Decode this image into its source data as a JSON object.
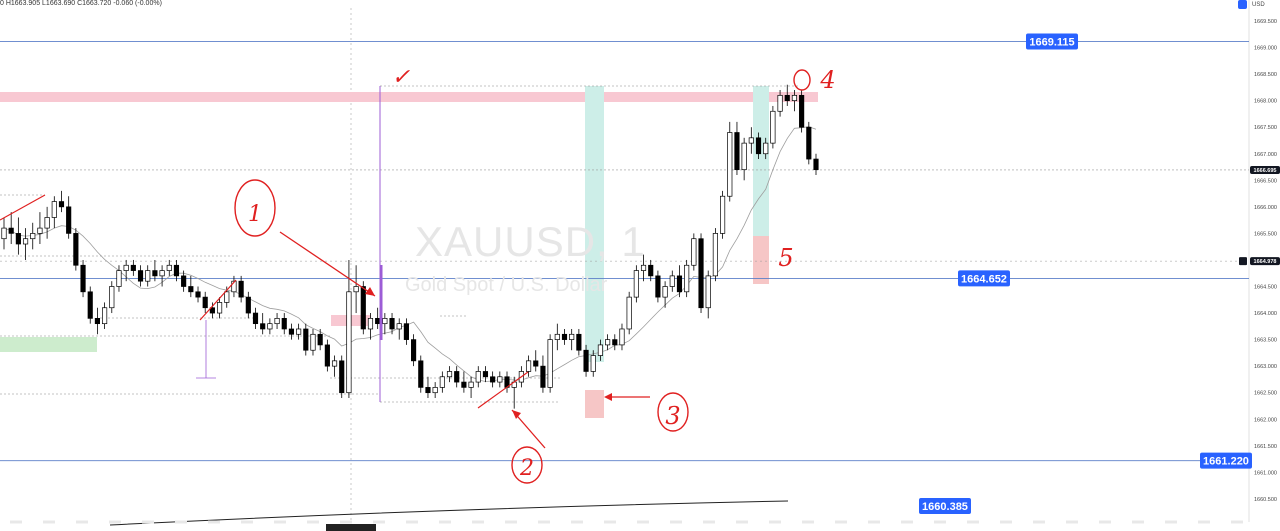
{
  "header": {
    "ohlc_text": "0  H1663.905  L1663.690  C1663.720  -0.060 (-0.00%)",
    "currency": "USD"
  },
  "watermark": {
    "symbol": "XAUUSD, 1",
    "description": "Gold Spot / U.S. Dollar"
  },
  "colors": {
    "up": "#ffffff",
    "down": "#000000",
    "wick": "#000000",
    "level_line": "#5b7fc9",
    "label_bg": "#2962ff",
    "resistance_zone": "#f8c8d2",
    "support_zone": "#cdeccd",
    "teal_zone": "#cdeee8",
    "annotation": "#e02020",
    "purple": "#9c5cd6"
  },
  "chart_data": {
    "type": "candlestick",
    "title": "",
    "ylim": [
      1660.3,
      1669.9
    ],
    "y_ticks": [
      "1669.500",
      "1669.000",
      "1668.500",
      "1668.000",
      "1667.500",
      "1667.000",
      "1666.500",
      "1666.000",
      "1665.500",
      "1665.000",
      "1664.500",
      "1664.000",
      "1663.500",
      "1663.000",
      "1662.500",
      "1662.000",
      "1661.500",
      "1661.000",
      "1660.500"
    ],
    "y_tick_values": [
      1669.5,
      1669.0,
      1668.5,
      1668.0,
      1667.5,
      1667.0,
      1666.5,
      1666.0,
      1665.5,
      1665.0,
      1664.5,
      1664.0,
      1663.5,
      1663.0,
      1662.5,
      1662.0,
      1661.5,
      1661.0,
      1660.5
    ],
    "current_price": "1666.695",
    "current_price_value": 1666.695,
    "crosshair_price": "1664.978",
    "crosshair_price_value": 1664.978,
    "levels": [
      {
        "label": "1669.115",
        "value": 1669.115
      },
      {
        "label": "1664.652",
        "value": 1664.652
      },
      {
        "label": "1661.220",
        "value": 1661.22
      },
      {
        "label": "1660.385",
        "value": 1660.385
      }
    ],
    "annotations": [
      "✓",
      "1",
      "2",
      "3",
      "4",
      "5"
    ],
    "candles": [
      [
        1665.4,
        1665.8,
        1665.2,
        1665.6
      ],
      [
        1665.6,
        1665.9,
        1665.3,
        1665.5
      ],
      [
        1665.5,
        1665.8,
        1665.1,
        1665.3
      ],
      [
        1665.3,
        1665.6,
        1665.0,
        1665.4
      ],
      [
        1665.4,
        1665.7,
        1665.2,
        1665.5
      ],
      [
        1665.5,
        1665.9,
        1665.3,
        1665.6
      ],
      [
        1665.6,
        1666.0,
        1665.4,
        1665.8
      ],
      [
        1665.8,
        1666.2,
        1665.6,
        1666.1
      ],
      [
        1666.1,
        1666.3,
        1665.9,
        1666.0
      ],
      [
        1666.0,
        1666.2,
        1665.4,
        1665.5
      ],
      [
        1665.5,
        1665.6,
        1664.8,
        1664.9
      ],
      [
        1664.9,
        1665.0,
        1664.3,
        1664.4
      ],
      [
        1664.4,
        1664.5,
        1663.8,
        1663.9
      ],
      [
        1663.9,
        1664.1,
        1663.6,
        1663.8
      ],
      [
        1663.8,
        1664.2,
        1663.7,
        1664.1
      ],
      [
        1664.1,
        1664.6,
        1664.0,
        1664.5
      ],
      [
        1664.5,
        1664.9,
        1664.4,
        1664.8
      ],
      [
        1664.8,
        1665.0,
        1664.6,
        1664.9
      ],
      [
        1664.9,
        1665.0,
        1664.7,
        1664.8
      ],
      [
        1664.8,
        1664.9,
        1664.5,
        1664.6
      ],
      [
        1664.6,
        1664.9,
        1664.5,
        1664.8
      ],
      [
        1664.8,
        1665.0,
        1664.6,
        1664.7
      ],
      [
        1664.7,
        1664.9,
        1664.5,
        1664.8
      ],
      [
        1664.8,
        1665.0,
        1664.7,
        1664.9
      ],
      [
        1664.9,
        1665.0,
        1664.6,
        1664.7
      ],
      [
        1664.7,
        1664.8,
        1664.4,
        1664.5
      ],
      [
        1664.5,
        1664.7,
        1664.3,
        1664.4
      ],
      [
        1664.4,
        1664.5,
        1664.2,
        1664.3
      ],
      [
        1664.3,
        1664.4,
        1664.0,
        1664.1
      ],
      [
        1664.1,
        1664.2,
        1663.9,
        1664.0
      ],
      [
        1664.0,
        1664.3,
        1663.9,
        1664.2
      ],
      [
        1664.2,
        1664.5,
        1664.1,
        1664.4
      ],
      [
        1664.4,
        1664.7,
        1664.3,
        1664.6
      ],
      [
        1664.6,
        1664.7,
        1664.2,
        1664.3
      ],
      [
        1664.3,
        1664.4,
        1663.9,
        1664.0
      ],
      [
        1664.0,
        1664.1,
        1663.7,
        1663.8
      ],
      [
        1663.8,
        1664.0,
        1663.6,
        1663.7
      ],
      [
        1663.7,
        1663.9,
        1663.6,
        1663.8
      ],
      [
        1663.8,
        1664.0,
        1663.7,
        1663.9
      ],
      [
        1663.9,
        1664.0,
        1663.6,
        1663.7
      ],
      [
        1663.7,
        1663.8,
        1663.5,
        1663.6
      ],
      [
        1663.6,
        1663.8,
        1663.5,
        1663.7
      ],
      [
        1663.7,
        1663.8,
        1663.2,
        1663.3
      ],
      [
        1663.3,
        1663.7,
        1663.2,
        1663.6
      ],
      [
        1663.6,
        1663.7,
        1663.3,
        1663.4
      ],
      [
        1663.4,
        1663.5,
        1662.9,
        1663.0
      ],
      [
        1663.0,
        1663.2,
        1662.8,
        1663.1
      ],
      [
        1663.1,
        1663.2,
        1662.4,
        1662.5
      ],
      [
        1662.5,
        1665.0,
        1662.4,
        1664.4
      ],
      [
        1664.4,
        1664.9,
        1664.0,
        1664.5
      ],
      [
        1664.5,
        1664.6,
        1663.6,
        1663.7
      ],
      [
        1663.7,
        1664.0,
        1663.5,
        1663.9
      ],
      [
        1663.9,
        1664.1,
        1663.7,
        1663.8
      ],
      [
        1663.8,
        1664.0,
        1663.6,
        1663.9
      ],
      [
        1663.9,
        1664.0,
        1663.6,
        1663.7
      ],
      [
        1663.7,
        1663.9,
        1663.5,
        1663.8
      ],
      [
        1663.8,
        1663.9,
        1663.4,
        1663.5
      ],
      [
        1663.5,
        1663.6,
        1663.0,
        1663.1
      ],
      [
        1663.1,
        1663.2,
        1662.5,
        1662.6
      ],
      [
        1662.6,
        1662.8,
        1662.4,
        1662.5
      ],
      [
        1662.5,
        1662.7,
        1662.4,
        1662.6
      ],
      [
        1662.6,
        1662.9,
        1662.5,
        1662.8
      ],
      [
        1662.8,
        1663.0,
        1662.7,
        1662.9
      ],
      [
        1662.9,
        1663.0,
        1662.6,
        1662.7
      ],
      [
        1662.7,
        1662.9,
        1662.5,
        1662.6
      ],
      [
        1662.6,
        1662.8,
        1662.4,
        1662.7
      ],
      [
        1662.7,
        1663.0,
        1662.6,
        1662.9
      ],
      [
        1662.9,
        1663.0,
        1662.7,
        1662.8
      ],
      [
        1662.8,
        1662.9,
        1662.6,
        1662.7
      ],
      [
        1662.7,
        1662.9,
        1662.6,
        1662.8
      ],
      [
        1662.8,
        1662.9,
        1662.5,
        1662.6
      ],
      [
        1662.6,
        1662.8,
        1662.2,
        1662.7
      ],
      [
        1662.7,
        1663.0,
        1662.6,
        1662.9
      ],
      [
        1662.9,
        1663.2,
        1662.8,
        1663.1
      ],
      [
        1663.1,
        1663.3,
        1662.9,
        1663.0
      ],
      [
        1663.0,
        1663.2,
        1662.5,
        1662.6
      ],
      [
        1662.6,
        1663.6,
        1662.5,
        1663.5
      ],
      [
        1663.5,
        1663.8,
        1663.3,
        1663.6
      ],
      [
        1663.6,
        1663.7,
        1663.4,
        1663.5
      ],
      [
        1663.5,
        1663.7,
        1663.3,
        1663.6
      ],
      [
        1663.6,
        1663.7,
        1663.2,
        1663.3
      ],
      [
        1663.3,
        1663.4,
        1662.8,
        1662.9
      ],
      [
        1662.9,
        1663.3,
        1662.8,
        1663.2
      ],
      [
        1663.2,
        1663.5,
        1663.1,
        1663.4
      ],
      [
        1663.4,
        1663.6,
        1663.3,
        1663.5
      ],
      [
        1663.5,
        1663.6,
        1663.3,
        1663.4
      ],
      [
        1663.4,
        1663.8,
        1663.3,
        1663.7
      ],
      [
        1663.7,
        1664.4,
        1663.6,
        1664.3
      ],
      [
        1664.3,
        1664.9,
        1664.2,
        1664.8
      ],
      [
        1664.8,
        1665.1,
        1664.6,
        1664.9
      ],
      [
        1664.9,
        1665.0,
        1664.6,
        1664.7
      ],
      [
        1664.7,
        1664.8,
        1664.2,
        1664.3
      ],
      [
        1664.3,
        1664.6,
        1664.1,
        1664.5
      ],
      [
        1664.5,
        1664.8,
        1664.4,
        1664.7
      ],
      [
        1664.7,
        1664.9,
        1664.3,
        1664.4
      ],
      [
        1664.4,
        1665.0,
        1664.3,
        1664.9
      ],
      [
        1664.9,
        1665.5,
        1664.8,
        1665.4
      ],
      [
        1665.4,
        1665.5,
        1664.0,
        1664.1
      ],
      [
        1664.1,
        1664.8,
        1663.9,
        1664.7
      ],
      [
        1664.7,
        1665.6,
        1664.6,
        1665.5
      ],
      [
        1665.5,
        1666.3,
        1665.4,
        1666.2
      ],
      [
        1666.2,
        1667.6,
        1666.1,
        1667.4
      ],
      [
        1667.4,
        1667.6,
        1666.6,
        1666.7
      ],
      [
        1666.7,
        1667.3,
        1666.5,
        1667.2
      ],
      [
        1667.2,
        1667.5,
        1667.0,
        1667.3
      ],
      [
        1667.3,
        1667.4,
        1666.9,
        1667.0
      ],
      [
        1667.0,
        1667.3,
        1666.9,
        1667.2
      ],
      [
        1667.2,
        1667.9,
        1667.1,
        1667.8
      ],
      [
        1667.8,
        1668.2,
        1667.7,
        1668.1
      ],
      [
        1668.1,
        1668.3,
        1667.9,
        1668.0
      ],
      [
        1668.0,
        1668.2,
        1667.8,
        1668.1
      ],
      [
        1668.1,
        1668.2,
        1667.4,
        1667.5
      ],
      [
        1667.5,
        1667.6,
        1666.8,
        1666.9
      ],
      [
        1666.9,
        1667.0,
        1666.6,
        1666.7
      ]
    ]
  }
}
